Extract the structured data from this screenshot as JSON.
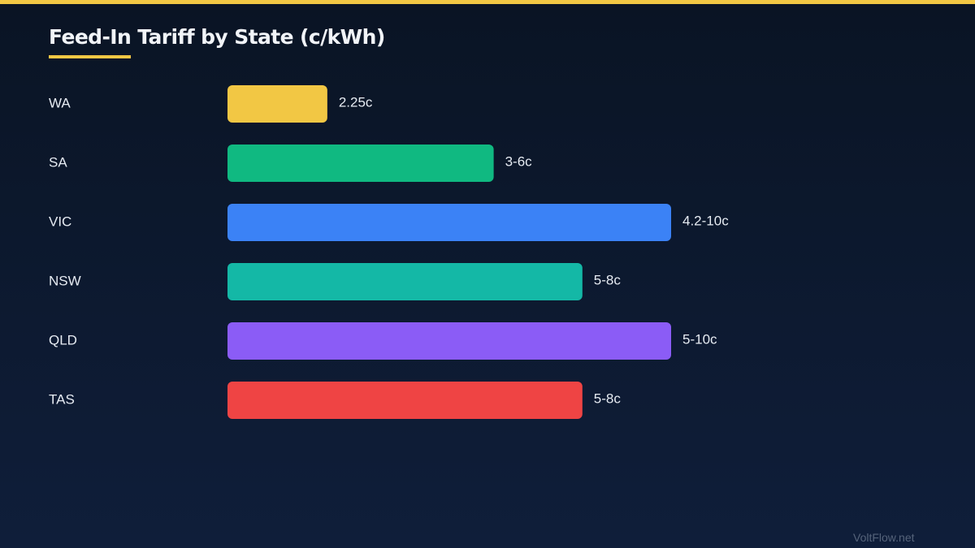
{
  "header": {
    "title": "Feed-In Tariff by State (c/kWh)"
  },
  "footer": {
    "watermark": "VoltFlow.net"
  },
  "colors": {
    "accent": "#f2c744",
    "text": "#e6ebf2"
  },
  "chart_data": {
    "type": "bar",
    "orientation": "horizontal",
    "title": "Feed-In Tariff by State (c/kWh)",
    "xlabel": "",
    "ylabel": "",
    "xlim": [
      0,
      11
    ],
    "grid": false,
    "categories": [
      "WA",
      "SA",
      "VIC",
      "NSW",
      "QLD",
      "TAS"
    ],
    "values": [
      2.25,
      6,
      10,
      8,
      10,
      8
    ],
    "value_labels": [
      "2.25c",
      "3-6c",
      "4.2-10c",
      "5-8c",
      "5-10c",
      "5-8c"
    ],
    "colors": [
      "#f2c744",
      "#10b981",
      "#3b82f6",
      "#14b8a6",
      "#8b5cf6",
      "#ef4444"
    ]
  }
}
